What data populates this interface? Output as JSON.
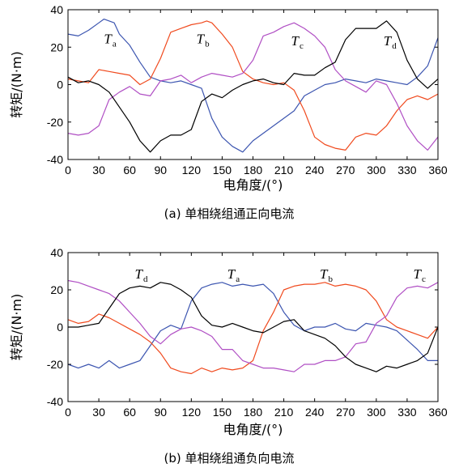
{
  "chart_data": [
    {
      "type": "line",
      "title": "",
      "caption": "(a) 单相绕组通正向电流",
      "xlabel": "电角度/(°)",
      "ylabel": "转矩/(N·m)",
      "xlim": [
        0,
        360
      ],
      "ylim": [
        -40,
        40
      ],
      "xticks": [
        0,
        30,
        60,
        90,
        120,
        150,
        180,
        210,
        240,
        270,
        300,
        330,
        360
      ],
      "yticks": [
        40,
        20,
        0,
        -20,
        -40
      ],
      "grid": false,
      "labels": [
        {
          "main": "T",
          "sub": "a",
          "x": 35,
          "y": 22
        },
        {
          "main": "T",
          "sub": "b",
          "x": 125,
          "y": 22
        },
        {
          "main": "T",
          "sub": "c",
          "x": 217,
          "y": 21
        },
        {
          "main": "T",
          "sub": "d",
          "x": 307,
          "y": 21
        }
      ],
      "series": [
        {
          "color": "#3c55b0",
          "x": [
            0,
            10,
            20,
            30,
            35,
            45,
            50,
            60,
            70,
            80,
            90,
            100,
            110,
            120,
            130,
            140,
            150,
            160,
            170,
            180,
            190,
            200,
            210,
            220,
            230,
            240,
            250,
            260,
            270,
            280,
            290,
            300,
            310,
            320,
            330,
            340,
            350,
            360
          ],
          "y": [
            27,
            26,
            29,
            33,
            35,
            33,
            27,
            21,
            12,
            4,
            2,
            1,
            2,
            0,
            -2,
            -18,
            -28,
            -33,
            -36,
            -30,
            -26,
            -22,
            -18,
            -14,
            -6,
            -3,
            0,
            1,
            3,
            2,
            1,
            3,
            2,
            1,
            0,
            4,
            10,
            25
          ]
        },
        {
          "color": "#f04a1e",
          "x": [
            0,
            10,
            20,
            30,
            40,
            50,
            60,
            70,
            80,
            90,
            100,
            110,
            120,
            130,
            135,
            140,
            150,
            160,
            170,
            180,
            190,
            200,
            210,
            220,
            230,
            240,
            250,
            260,
            270,
            280,
            290,
            300,
            310,
            320,
            330,
            340,
            350,
            360
          ],
          "y": [
            3,
            2,
            1,
            8,
            7,
            6,
            5,
            0,
            3,
            14,
            28,
            30,
            32,
            33,
            34,
            33,
            27,
            20,
            7,
            3,
            1,
            0,
            1,
            -3,
            -14,
            -28,
            -32,
            -34,
            -35,
            -28,
            -26,
            -27,
            -22,
            -14,
            -8,
            -6,
            -8,
            -5
          ]
        },
        {
          "color": "#b04fc4",
          "x": [
            0,
            10,
            20,
            30,
            40,
            50,
            60,
            70,
            80,
            90,
            100,
            110,
            120,
            130,
            140,
            150,
            160,
            170,
            180,
            190,
            200,
            210,
            220,
            230,
            240,
            250,
            260,
            270,
            280,
            290,
            300,
            310,
            320,
            330,
            340,
            350,
            360
          ],
          "y": [
            -26,
            -27,
            -26,
            -22,
            -8,
            -4,
            -1,
            -5,
            -6,
            2,
            3,
            5,
            1,
            4,
            6,
            5,
            4,
            6,
            13,
            26,
            28,
            31,
            33,
            30,
            26,
            20,
            8,
            2,
            -1,
            -4,
            2,
            0,
            -10,
            -22,
            -30,
            -35,
            -28
          ]
        },
        {
          "color": "#000000",
          "x": [
            0,
            10,
            20,
            30,
            40,
            50,
            60,
            70,
            80,
            90,
            100,
            110,
            120,
            130,
            140,
            150,
            160,
            170,
            180,
            190,
            200,
            210,
            220,
            230,
            240,
            250,
            260,
            270,
            280,
            290,
            300,
            310,
            320,
            330,
            340,
            350,
            360
          ],
          "y": [
            4,
            1,
            2,
            0,
            -4,
            -12,
            -20,
            -30,
            -36,
            -30,
            -27,
            -27,
            -24,
            -9,
            -5,
            -7,
            -3,
            0,
            2,
            3,
            1,
            0,
            6,
            5,
            5,
            9,
            12,
            24,
            30,
            30,
            30,
            34,
            28,
            13,
            3,
            -2,
            3
          ]
        }
      ]
    },
    {
      "type": "line",
      "title": "",
      "caption": "(b) 单相绕组通负向电流",
      "xlabel": "电角度/(°)",
      "ylabel": "转矩/(N·m)",
      "xlim": [
        0,
        360
      ],
      "ylim": [
        -40,
        40
      ],
      "xticks": [
        0,
        30,
        60,
        90,
        120,
        150,
        180,
        210,
        240,
        270,
        300,
        330,
        360
      ],
      "yticks": [
        40,
        20,
        0,
        -20,
        -40
      ],
      "grid": false,
      "labels": [
        {
          "main": "T",
          "sub": "d",
          "x": 65,
          "y": 26
        },
        {
          "main": "T",
          "sub": "a",
          "x": 155,
          "y": 26
        },
        {
          "main": "T",
          "sub": "b",
          "x": 245,
          "y": 26
        },
        {
          "main": "T",
          "sub": "c",
          "x": 336,
          "y": 26
        }
      ],
      "series": [
        {
          "color": "#3c55b0",
          "x": [
            0,
            10,
            20,
            30,
            40,
            50,
            60,
            70,
            80,
            90,
            100,
            110,
            120,
            130,
            140,
            150,
            160,
            170,
            180,
            190,
            200,
            210,
            220,
            230,
            240,
            250,
            260,
            270,
            280,
            290,
            300,
            310,
            320,
            330,
            340,
            350,
            360
          ],
          "y": [
            -20,
            -22,
            -20,
            -22,
            -18,
            -22,
            -20,
            -18,
            -10,
            -2,
            1,
            -1,
            14,
            21,
            23,
            24,
            22,
            23,
            22,
            23,
            18,
            8,
            1,
            -2,
            0,
            0,
            2,
            -1,
            -2,
            2,
            1,
            0,
            -2,
            -7,
            -12,
            -18,
            -18
          ]
        },
        {
          "color": "#f04a1e",
          "x": [
            0,
            10,
            20,
            30,
            40,
            50,
            60,
            70,
            80,
            90,
            100,
            110,
            120,
            130,
            140,
            150,
            160,
            170,
            180,
            190,
            200,
            210,
            220,
            230,
            240,
            250,
            260,
            270,
            280,
            290,
            300,
            310,
            320,
            330,
            340,
            350,
            360
          ],
          "y": [
            4,
            2,
            3,
            7,
            5,
            2,
            -1,
            -4,
            -8,
            -14,
            -22,
            -24,
            -25,
            -22,
            -24,
            -22,
            -23,
            -22,
            -18,
            -2,
            8,
            20,
            22,
            23,
            23,
            24,
            22,
            23,
            22,
            20,
            14,
            4,
            0,
            -2,
            -4,
            -6,
            0
          ]
        },
        {
          "color": "#b04fc4",
          "x": [
            0,
            10,
            20,
            30,
            40,
            50,
            60,
            70,
            80,
            90,
            100,
            110,
            120,
            130,
            140,
            150,
            160,
            170,
            180,
            190,
            200,
            210,
            220,
            230,
            240,
            250,
            260,
            270,
            280,
            290,
            300,
            310,
            320,
            330,
            340,
            350,
            360
          ],
          "y": [
            25,
            24,
            22,
            20,
            18,
            14,
            8,
            2,
            -5,
            -9,
            -4,
            -1,
            0,
            -2,
            -5,
            -12,
            -12,
            -18,
            -20,
            -22,
            -22,
            -23,
            -24,
            -20,
            -20,
            -18,
            -18,
            -16,
            -9,
            -8,
            2,
            6,
            16,
            21,
            22,
            21,
            24
          ]
        },
        {
          "color": "#000000",
          "x": [
            0,
            10,
            20,
            30,
            40,
            50,
            60,
            70,
            80,
            90,
            100,
            110,
            120,
            130,
            140,
            150,
            160,
            170,
            180,
            190,
            200,
            210,
            220,
            230,
            240,
            250,
            260,
            270,
            280,
            290,
            300,
            310,
            320,
            330,
            340,
            350,
            360
          ],
          "y": [
            0,
            0,
            1,
            2,
            10,
            18,
            21,
            22,
            21,
            24,
            23,
            20,
            16,
            6,
            1,
            0,
            2,
            0,
            -2,
            -3,
            0,
            3,
            4,
            -2,
            -4,
            -6,
            -10,
            -16,
            -20,
            -22,
            -24,
            -21,
            -22,
            -20,
            -18,
            -14,
            0
          ]
        }
      ]
    }
  ]
}
